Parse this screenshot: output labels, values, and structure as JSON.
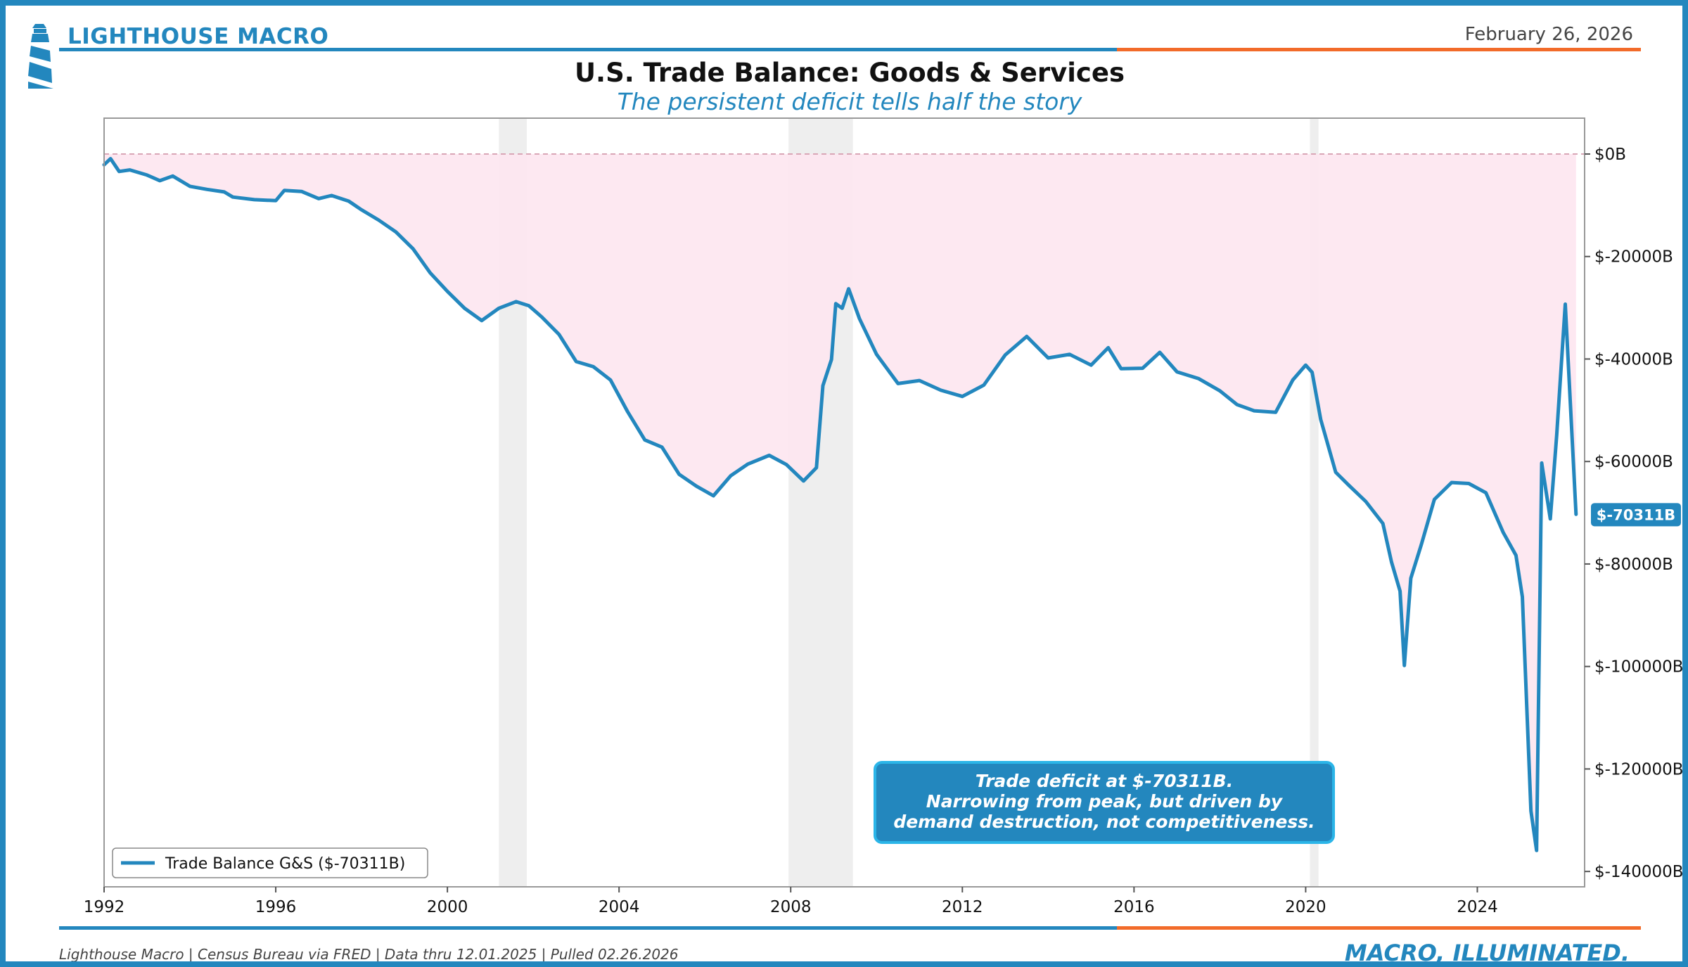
{
  "header": {
    "brand": "LIGHTHOUSE MACRO",
    "date": "February 26, 2026"
  },
  "colors": {
    "brand_blue": "#2387be",
    "accent_orange": "#f26b2a",
    "deficit_fill": "#fde6ef",
    "recession_fill": "#e5e5e5",
    "callout_border": "#2bb5e8"
  },
  "icons": {
    "logo": "lighthouse-icon"
  },
  "chart_data": {
    "type": "line",
    "title": "U.S. Trade Balance: Goods & Services",
    "subtitle": "The persistent deficit tells half the story",
    "xlabel": "",
    "ylabel": "",
    "xlim": [
      1992.0,
      2026.5
    ],
    "ylim": [
      -143000,
      7000
    ],
    "x_ticks": [
      "1992",
      "1996",
      "2000",
      "2004",
      "2008",
      "2012",
      "2016",
      "2020",
      "2024"
    ],
    "y_ticks": [
      "$0B",
      "$-20000B",
      "$-40000B",
      "$-60000B",
      "$-80000B",
      "$-100000B",
      "$-120000B",
      "$-140000B"
    ],
    "y_tick_values": [
      0,
      -20000,
      -40000,
      -60000,
      -80000,
      -100000,
      -120000,
      -140000
    ],
    "zero_line": true,
    "recessions": [
      [
        2001.2,
        2001.85
      ],
      [
        2007.95,
        2009.45
      ],
      [
        2020.1,
        2020.3
      ]
    ],
    "series": [
      {
        "name": "Trade Balance G&S",
        "legend_label": "Trade Balance G&S ($-70311B)",
        "color": "#2387be",
        "points": [
          [
            1992.0,
            -2100
          ],
          [
            1992.15,
            -900
          ],
          [
            1992.35,
            -3400
          ],
          [
            1992.6,
            -3100
          ],
          [
            1993.0,
            -4100
          ],
          [
            1993.3,
            -5200
          ],
          [
            1993.6,
            -4300
          ],
          [
            1994.0,
            -6300
          ],
          [
            1994.4,
            -6900
          ],
          [
            1994.8,
            -7400
          ],
          [
            1995.0,
            -8400
          ],
          [
            1995.5,
            -8900
          ],
          [
            1996.0,
            -9100
          ],
          [
            1996.2,
            -7100
          ],
          [
            1996.6,
            -7300
          ],
          [
            1997.0,
            -8700
          ],
          [
            1997.3,
            -8100
          ],
          [
            1997.7,
            -9200
          ],
          [
            1998.0,
            -10900
          ],
          [
            1998.4,
            -12900
          ],
          [
            1998.8,
            -15200
          ],
          [
            1999.2,
            -18500
          ],
          [
            1999.6,
            -23200
          ],
          [
            2000.0,
            -26800
          ],
          [
            2000.4,
            -30100
          ],
          [
            2000.8,
            -32500
          ],
          [
            2001.2,
            -30100
          ],
          [
            2001.6,
            -28800
          ],
          [
            2001.9,
            -29600
          ],
          [
            2002.2,
            -31800
          ],
          [
            2002.6,
            -35200
          ],
          [
            2003.0,
            -40500
          ],
          [
            2003.4,
            -41500
          ],
          [
            2003.8,
            -44100
          ],
          [
            2004.2,
            -50300
          ],
          [
            2004.6,
            -55800
          ],
          [
            2005.0,
            -57200
          ],
          [
            2005.4,
            -62500
          ],
          [
            2005.8,
            -64800
          ],
          [
            2006.2,
            -66700
          ],
          [
            2006.6,
            -62800
          ],
          [
            2007.0,
            -60500
          ],
          [
            2007.5,
            -58800
          ],
          [
            2007.9,
            -60600
          ],
          [
            2008.3,
            -63800
          ],
          [
            2008.6,
            -61200
          ],
          [
            2008.75,
            -45200
          ],
          [
            2008.95,
            -40100
          ],
          [
            2009.05,
            -29200
          ],
          [
            2009.2,
            -30100
          ],
          [
            2009.35,
            -26300
          ],
          [
            2009.6,
            -32100
          ],
          [
            2010.0,
            -39100
          ],
          [
            2010.5,
            -44800
          ],
          [
            2011.0,
            -44200
          ],
          [
            2011.5,
            -46100
          ],
          [
            2012.0,
            -47300
          ],
          [
            2012.5,
            -45100
          ],
          [
            2013.0,
            -39200
          ],
          [
            2013.5,
            -35600
          ],
          [
            2014.0,
            -39800
          ],
          [
            2014.5,
            -39100
          ],
          [
            2015.0,
            -41200
          ],
          [
            2015.4,
            -37800
          ],
          [
            2015.7,
            -41900
          ],
          [
            2016.2,
            -41800
          ],
          [
            2016.6,
            -38700
          ],
          [
            2017.0,
            -42500
          ],
          [
            2017.5,
            -43800
          ],
          [
            2018.0,
            -46200
          ],
          [
            2018.4,
            -48900
          ],
          [
            2018.8,
            -50100
          ],
          [
            2019.3,
            -50400
          ],
          [
            2019.7,
            -44100
          ],
          [
            2020.0,
            -41200
          ],
          [
            2020.15,
            -42600
          ],
          [
            2020.35,
            -51800
          ],
          [
            2020.7,
            -62100
          ],
          [
            2021.0,
            -64600
          ],
          [
            2021.4,
            -67800
          ],
          [
            2021.8,
            -72100
          ],
          [
            2022.0,
            -79600
          ],
          [
            2022.2,
            -85300
          ],
          [
            2022.3,
            -99800
          ],
          [
            2022.45,
            -82800
          ],
          [
            2022.7,
            -76100
          ],
          [
            2023.0,
            -67400
          ],
          [
            2023.4,
            -64100
          ],
          [
            2023.8,
            -64300
          ],
          [
            2024.2,
            -66100
          ],
          [
            2024.6,
            -73800
          ],
          [
            2024.9,
            -78300
          ],
          [
            2025.05,
            -86400
          ],
          [
            2025.25,
            -128200
          ],
          [
            2025.38,
            -135900
          ],
          [
            2025.5,
            -60300
          ],
          [
            2025.7,
            -71200
          ],
          [
            2025.85,
            -54900
          ],
          [
            2026.05,
            -29300
          ],
          [
            2026.3,
            -70311
          ]
        ]
      }
    ],
    "last_value_label": "$-70311B",
    "legend_position": "lower-left",
    "annotation": {
      "lines": [
        "Trade deficit at $-70311B.",
        "Narrowing from peak, but driven by",
        "demand destruction, not competitiveness."
      ]
    }
  },
  "footer": {
    "source": "Lighthouse Macro | Census Bureau via FRED | Data thru 12.01.2025 | Pulled 02.26.2026",
    "tagline": "MACRO, ILLUMINATED."
  }
}
